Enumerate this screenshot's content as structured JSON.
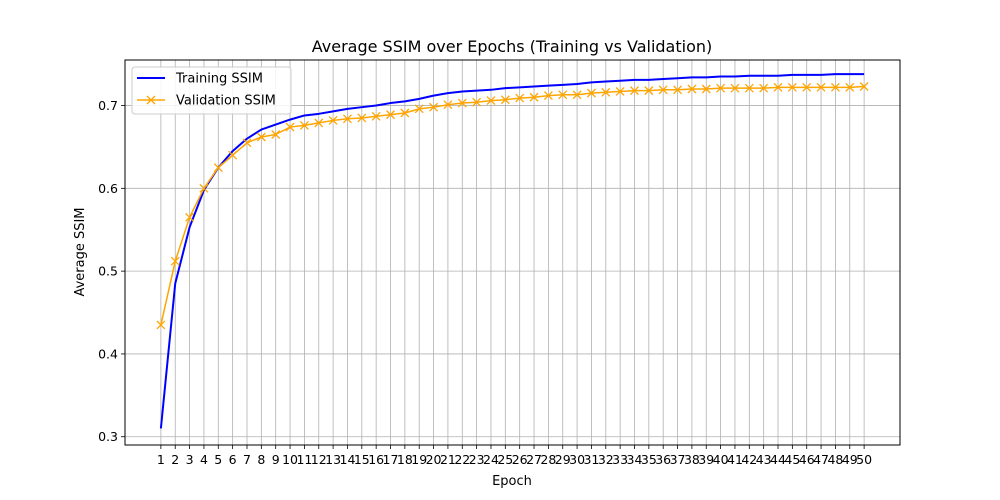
{
  "chart_data": {
    "type": "line",
    "title": "Average SSIM over Epochs (Training vs Validation)",
    "xlabel": "Epoch",
    "ylabel": "Average SSIM",
    "x": [
      1,
      2,
      3,
      4,
      5,
      6,
      7,
      8,
      9,
      10,
      11,
      12,
      13,
      14,
      15,
      16,
      17,
      18,
      19,
      20,
      21,
      22,
      23,
      24,
      25,
      26,
      27,
      28,
      29,
      30,
      31,
      32,
      33,
      34,
      35,
      36,
      37,
      38,
      39,
      40,
      41,
      42,
      43,
      44,
      45,
      46,
      47,
      48,
      49,
      50
    ],
    "xlim": [
      -1.5,
      52.5
    ],
    "ylim": [
      0.29,
      0.755
    ],
    "yticks": [
      0.3,
      0.4,
      0.5,
      0.6,
      0.7
    ],
    "ytick_labels": [
      "0.3",
      "0.4",
      "0.5",
      "0.6",
      "0.7"
    ],
    "grid": true,
    "legend_position": "top-left",
    "series": [
      {
        "name": "Training SSIM",
        "color": "#0000ff",
        "marker": "none",
        "values": [
          0.31,
          0.485,
          0.553,
          0.598,
          0.625,
          0.645,
          0.66,
          0.671,
          0.677,
          0.683,
          0.688,
          0.69,
          0.693,
          0.696,
          0.698,
          0.7,
          0.703,
          0.705,
          0.708,
          0.712,
          0.715,
          0.717,
          0.718,
          0.719,
          0.721,
          0.722,
          0.723,
          0.724,
          0.725,
          0.726,
          0.728,
          0.729,
          0.73,
          0.731,
          0.731,
          0.732,
          0.733,
          0.734,
          0.734,
          0.735,
          0.735,
          0.736,
          0.736,
          0.736,
          0.737,
          0.737,
          0.737,
          0.738,
          0.738,
          0.738
        ]
      },
      {
        "name": "Validation SSIM",
        "color": "#ffa500",
        "marker": "x",
        "values": [
          0.435,
          0.512,
          0.565,
          0.6,
          0.625,
          0.64,
          0.655,
          0.662,
          0.665,
          0.674,
          0.676,
          0.679,
          0.682,
          0.684,
          0.685,
          0.687,
          0.689,
          0.691,
          0.696,
          0.698,
          0.701,
          0.703,
          0.704,
          0.706,
          0.707,
          0.709,
          0.71,
          0.712,
          0.713,
          0.713,
          0.715,
          0.716,
          0.717,
          0.718,
          0.718,
          0.719,
          0.719,
          0.72,
          0.72,
          0.721,
          0.721,
          0.721,
          0.721,
          0.722,
          0.722,
          0.722,
          0.722,
          0.722,
          0.722,
          0.723
        ]
      }
    ]
  }
}
